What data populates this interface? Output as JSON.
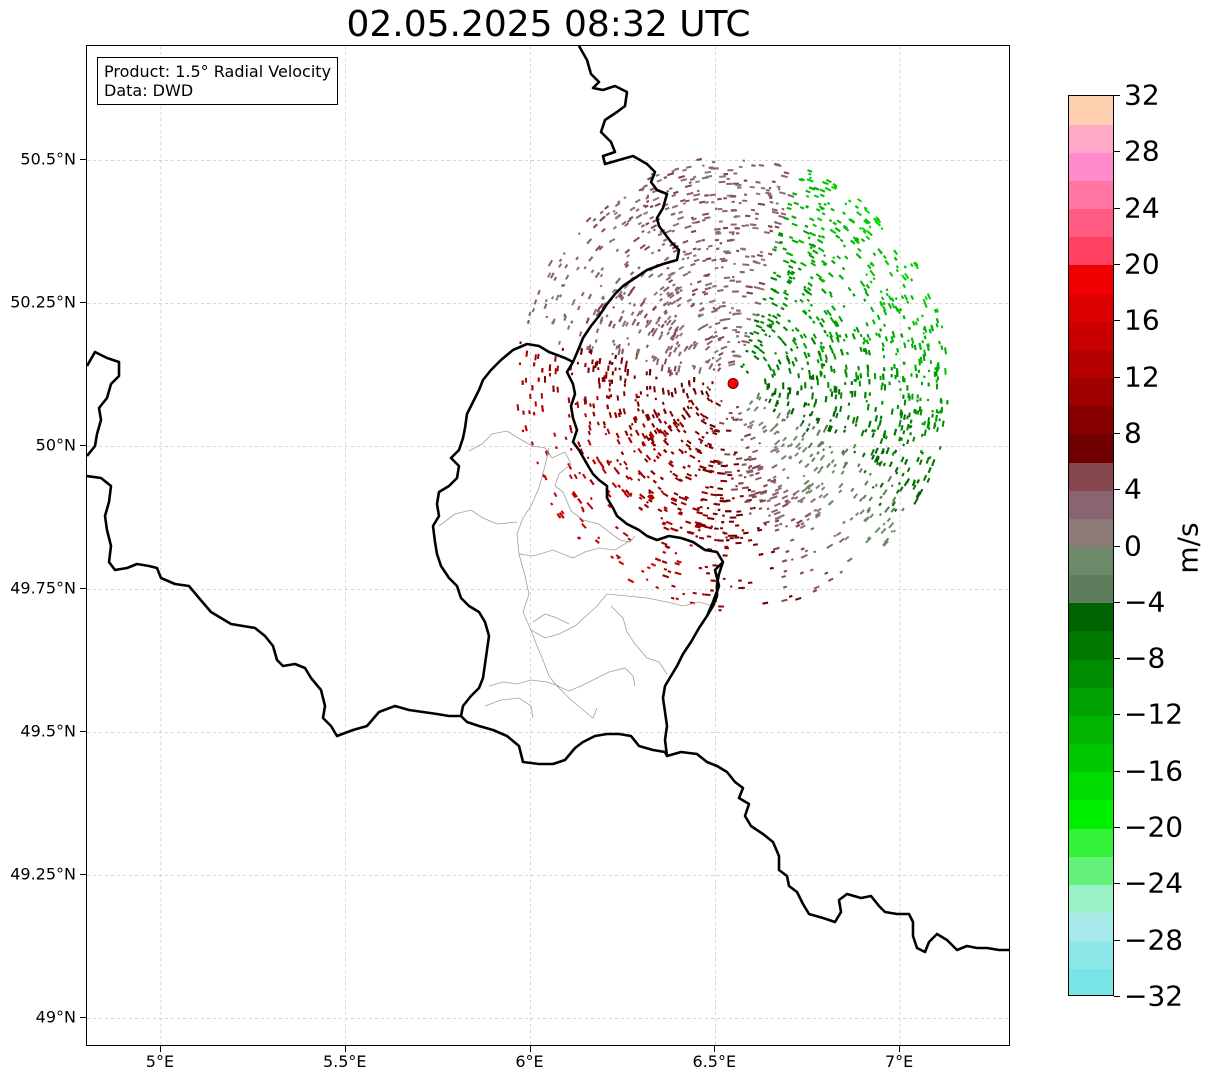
{
  "title": "02.05.2025 08:32 UTC",
  "info_box": {
    "product": "Product: 1.5° Radial Velocity",
    "source": "Data: DWD"
  },
  "map": {
    "lon_range": [
      4.8,
      7.3
    ],
    "lat_range": [
      48.95,
      50.7
    ],
    "lat_ticks": [
      {
        "value": 50.5,
        "label": "50.5°N"
      },
      {
        "value": 50.25,
        "label": "50.25°N"
      },
      {
        "value": 50.0,
        "label": "50°N"
      },
      {
        "value": 49.75,
        "label": "49.75°N"
      },
      {
        "value": 49.5,
        "label": "49.5°N"
      },
      {
        "value": 49.25,
        "label": "49.25°N"
      },
      {
        "value": 49.0,
        "label": "49°N"
      }
    ],
    "lon_ticks": [
      {
        "value": 5.0,
        "label": "5°E"
      },
      {
        "value": 5.5,
        "label": "5.5°E"
      },
      {
        "value": 6.0,
        "label": "6°E"
      },
      {
        "value": 6.5,
        "label": "6.5°E"
      },
      {
        "value": 7.0,
        "label": "7°E"
      }
    ],
    "radar_site": {
      "lon": 6.548,
      "lat": 50.11
    },
    "radar_range_deg_lat": 0.38,
    "grid": true,
    "colors": {
      "border": "#000000",
      "admin": "#a0a0a0",
      "radar_site": "#ff0000"
    }
  },
  "colorbar": {
    "unit": "m/s",
    "min": -32,
    "max": 32,
    "tick_values": [
      32,
      28,
      24,
      20,
      16,
      12,
      8,
      4,
      0,
      -4,
      -8,
      -12,
      -16,
      -20,
      -24,
      -28,
      -32
    ],
    "tick_labels": [
      "32",
      "28",
      "24",
      "20",
      "16",
      "12",
      "8",
      "4",
      "0",
      "−4",
      "−8",
      "−12",
      "−16",
      "−20",
      "−24",
      "−28",
      "−32"
    ],
    "bins": [
      {
        "from": -32,
        "to": -30,
        "color": "#78e6e6"
      },
      {
        "from": -30,
        "to": -28,
        "color": "#8ce8e8"
      },
      {
        "from": -28,
        "to": -26,
        "color": "#a8eaea"
      },
      {
        "from": -26,
        "to": -24,
        "color": "#9af2c6"
      },
      {
        "from": -24,
        "to": -22,
        "color": "#66f27a"
      },
      {
        "from": -22,
        "to": -20,
        "color": "#32f23a"
      },
      {
        "from": -20,
        "to": -18,
        "color": "#00f000"
      },
      {
        "from": -18,
        "to": -16,
        "color": "#00dd00"
      },
      {
        "from": -16,
        "to": -14,
        "color": "#00c800"
      },
      {
        "from": -14,
        "to": -12,
        "color": "#00b400"
      },
      {
        "from": -12,
        "to": -10,
        "color": "#00a000"
      },
      {
        "from": -10,
        "to": -8,
        "color": "#008c00"
      },
      {
        "from": -8,
        "to": -6,
        "color": "#007800"
      },
      {
        "from": -6,
        "to": -4,
        "color": "#006400"
      },
      {
        "from": -4,
        "to": -2,
        "color": "#5e7d5c"
      },
      {
        "from": -2,
        "to": 0,
        "color": "#6c8a6a"
      },
      {
        "from": 0,
        "to": 2,
        "color": "#8c7a78"
      },
      {
        "from": 2,
        "to": 4,
        "color": "#8a6470"
      },
      {
        "from": 4,
        "to": 6,
        "color": "#86484e"
      },
      {
        "from": 6,
        "to": 8,
        "color": "#700000"
      },
      {
        "from": 8,
        "to": 10,
        "color": "#860000"
      },
      {
        "from": 10,
        "to": 12,
        "color": "#a00000"
      },
      {
        "from": 12,
        "to": 14,
        "color": "#b40000"
      },
      {
        "from": 14,
        "to": 16,
        "color": "#c80000"
      },
      {
        "from": 16,
        "to": 18,
        "color": "#dc0000"
      },
      {
        "from": 18,
        "to": 20,
        "color": "#f00000"
      },
      {
        "from": 20,
        "to": 22,
        "color": "#ff4060"
      },
      {
        "from": 22,
        "to": 24,
        "color": "#ff5a80"
      },
      {
        "from": 24,
        "to": 26,
        "color": "#ff74a0"
      },
      {
        "from": 26,
        "to": 28,
        "color": "#ff8acc"
      },
      {
        "from": 28,
        "to": 30,
        "color": "#ffa8c8"
      },
      {
        "from": 30,
        "to": 32,
        "color": "#ffd0b0"
      }
    ]
  }
}
